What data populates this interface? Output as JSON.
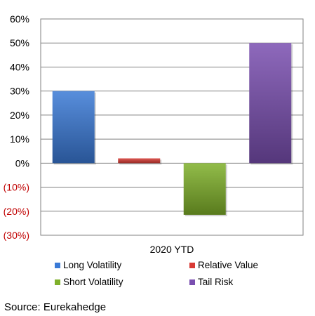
{
  "chart_data": {
    "type": "bar",
    "categories": [
      "2020 YTD"
    ],
    "series": [
      {
        "name": "Long Volatility",
        "values": [
          30
        ],
        "color": "#3a7ad6"
      },
      {
        "name": "Relative Value",
        "values": [
          2
        ],
        "color": "#d83a34"
      },
      {
        "name": "Short Volatility",
        "values": [
          -21.5
        ],
        "color": "#7fb02a"
      },
      {
        "name": "Tail Risk",
        "values": [
          50
        ],
        "color": "#7a4fb0"
      }
    ],
    "ylim": [
      -30,
      60
    ],
    "yticks": [
      {
        "value": 60,
        "label": "60%"
      },
      {
        "value": 50,
        "label": "50%"
      },
      {
        "value": 40,
        "label": "40%"
      },
      {
        "value": 30,
        "label": "30%"
      },
      {
        "value": 20,
        "label": "20%"
      },
      {
        "value": 10,
        "label": "10%"
      },
      {
        "value": 0,
        "label": "0%"
      },
      {
        "value": -10,
        "label": "(10%)"
      },
      {
        "value": -20,
        "label": "(20%)"
      },
      {
        "value": -30,
        "label": "(30%)"
      }
    ],
    "negative_tick_color": "#c00000",
    "grid": true,
    "legend_position": "bottom"
  },
  "source": "Source: Eurekahedge"
}
